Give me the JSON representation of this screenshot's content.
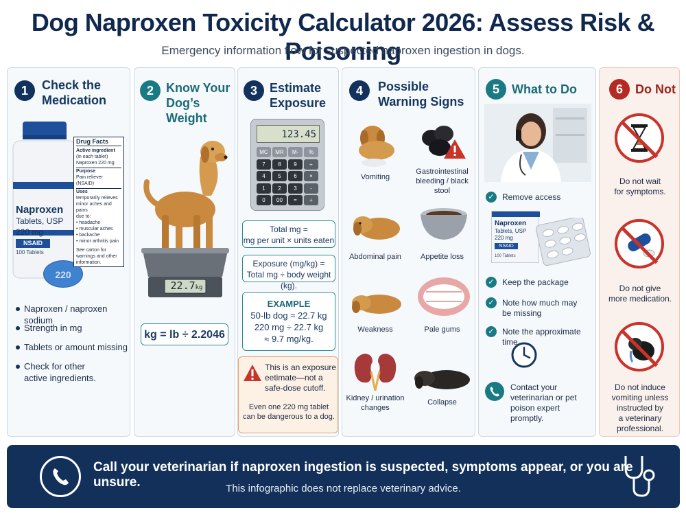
{
  "title": "Dog Naproxen Toxicity Calculator 2026: Assess Risk & Poisoning",
  "subtitle": "Emergency information flow for suspected naproxen ingestion in dogs.",
  "step1": {
    "number": "1",
    "heading_line1": "Check the",
    "heading_line2": "Medication",
    "bottle": {
      "name": "Naproxen",
      "line2": "Tablets, USP",
      "strength": "220 mg",
      "badge": "NSAID",
      "count": "100 Tablets",
      "pill_text": "220"
    },
    "drug_facts": {
      "title": "Drug Facts",
      "active_label": "Active ingredient",
      "active_sub": "(in each tablet)",
      "active_value": "Naproxen 220 mg",
      "purpose_label": "Purpose",
      "purpose_value": "Pain reliever (NSAID)",
      "uses_label": "Uses",
      "uses_lines": [
        "temporarily relieves",
        "minor aches and pains",
        "due to:",
        "• headache",
        "• muscular aches",
        "• backache",
        "• minor arthritis pain"
      ],
      "see_carton": [
        "See carton for",
        "warnings and other",
        "information."
      ]
    },
    "bullets": [
      [
        "Naproxen / naproxen sodium"
      ],
      [
        "Strength in mg"
      ],
      [
        "Tablets or amount missing"
      ],
      [
        "Check for other",
        "active ingredients."
      ]
    ]
  },
  "step2": {
    "number": "2",
    "heading_line1": "Know Your",
    "heading_line2": "Dog’s Weight",
    "scale_reading": "22.7",
    "scale_unit": "kg",
    "formula": "kg = lb ÷ 2.2046"
  },
  "step3": {
    "number": "3",
    "heading_line1": "Estimate",
    "heading_line2": "Exposure",
    "calc_display": "123.45",
    "calc_keys": [
      "MC",
      "MR",
      "M-",
      "%",
      "7",
      "8",
      "9",
      "÷",
      "4",
      "5",
      "6",
      "×",
      "1",
      "2",
      "3",
      "-",
      "0",
      "00",
      "=",
      "+"
    ],
    "formula1": [
      "Total mg =",
      "mg per unit × units eaten"
    ],
    "formula2": [
      "Exposure (mg/kg) =",
      "Total mg ÷ body weight (kg)."
    ],
    "example_title": "EXAMPLE",
    "example_lines": [
      "50-lb dog ≈ 22.7 kg",
      "220 mg ÷ 22.7 kg",
      "≈ 9.7 mg/kg."
    ],
    "warning_lines": [
      "This is an exposure",
      "eetimate—not a",
      "safe-dose cutoff."
    ],
    "warning_sub": [
      "Even one 220 mg tablet",
      "can be dangerous to a dog."
    ]
  },
  "step4": {
    "number": "4",
    "heading_line1": "Possible",
    "heading_line2": "Warning Signs",
    "signs": [
      [
        "Vomiting"
      ],
      [
        "Gastrointestinal",
        "bleeding / black stool"
      ],
      [
        "Abdominal pain"
      ],
      [
        "Appetite loss"
      ],
      [
        "Weakness"
      ],
      [
        "Pale gums"
      ],
      [
        "Kidney / urination",
        "changes"
      ],
      [
        "Collapse"
      ]
    ]
  },
  "step5": {
    "number": "5",
    "heading": "What to Do",
    "remove_access": "Remove access",
    "box": {
      "name": "Naproxen",
      "line2": "Tablets, USP",
      "strength": "220 mg",
      "badge": "NSAID",
      "count": "100 Tablets"
    },
    "checks": [
      [
        "Keep the package"
      ],
      [
        "Note how much may",
        "be missing"
      ],
      [
        "Note the approximate time"
      ]
    ],
    "contact": [
      "Contact your",
      "veterinarian or pet",
      "poison expert",
      "promptly."
    ]
  },
  "step6": {
    "number": "6",
    "heading": "Do Not",
    "items": [
      [
        "Do not wait",
        "for symptoms."
      ],
      [
        "Do not give",
        "more medication."
      ],
      [
        "Do not induce",
        "vomiting unless",
        "instructed by",
        "a veterinary",
        "professional."
      ]
    ]
  },
  "footer": {
    "main": "Call your veterinarian if naproxen ingestion is suspected, symptoms appear, or you are unsure.",
    "sub": "This infographic does not replace veterinary advice."
  },
  "colors": {
    "navy": "#12315c",
    "teal": "#1a7a84",
    "red": "#c8332a",
    "footer": "#12305a"
  }
}
